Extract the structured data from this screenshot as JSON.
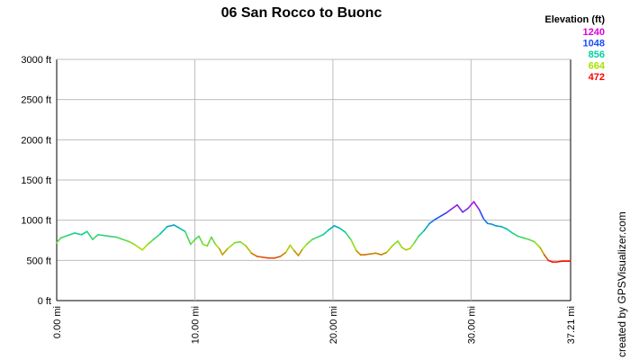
{
  "chart_data": {
    "type": "line",
    "title": "06 San Rocco to Buonc",
    "credit": "created by GPSVisualizer.com",
    "x_unit": "mi",
    "y_unit": "ft",
    "xlim": [
      0,
      37.21
    ],
    "ylim": [
      0,
      3000
    ],
    "x_ticks": [
      "0.00 mi",
      "10.00 mi",
      "20.00 mi",
      "30.00 mi",
      "37.21 mi"
    ],
    "y_ticks": [
      "0 ft",
      "500 ft",
      "1000 ft",
      "1500 ft",
      "2000 ft",
      "2500 ft",
      "3000 ft"
    ],
    "grid": true,
    "legend": {
      "title": "Elevation (ft)",
      "position": "top-right",
      "entries": [
        {
          "label": "1240",
          "color": "#dd00dd"
        },
        {
          "label": "1048",
          "color": "#1a4dff"
        },
        {
          "label": "856",
          "color": "#00d0a0"
        },
        {
          "label": "664",
          "color": "#a8e000"
        },
        {
          "label": "472",
          "color": "#ff0000"
        }
      ]
    },
    "series": [
      {
        "x": [
          0,
          0.3,
          0.8,
          1.3,
          1.8,
          2.2,
          2.6,
          3.0,
          3.4,
          3.8,
          4.3,
          4.8,
          5.3,
          5.7,
          6.2,
          6.6,
          7.0,
          7.5,
          8.0,
          8.5,
          8.9,
          9.3,
          9.7,
          10.0,
          10.3,
          10.6,
          10.9,
          11.2,
          11.5,
          11.8,
          12.0,
          12.4,
          12.9,
          13.3,
          13.7,
          14.1,
          14.5,
          14.9,
          15.3,
          15.8,
          16.2,
          16.6,
          16.9,
          17.2,
          17.5,
          17.8,
          18.1,
          18.5,
          18.9,
          19.3,
          19.7,
          20.1,
          20.5,
          20.9,
          21.3,
          21.7,
          22.0,
          22.3,
          22.7,
          23.1,
          23.5,
          23.9,
          24.3,
          24.7,
          25.0,
          25.3,
          25.6,
          25.9,
          26.2,
          26.6,
          27.0,
          27.4,
          27.8,
          28.2,
          28.6,
          29.0,
          29.4,
          29.8,
          30.2,
          30.6,
          30.9,
          31.2,
          31.5,
          31.8,
          32.2,
          32.6,
          33.0,
          33.4,
          33.8,
          34.2,
          34.6,
          35.0,
          35.3,
          35.6,
          35.9,
          36.2,
          36.6,
          37.21
        ],
        "y": [
          720,
          780,
          810,
          840,
          820,
          860,
          760,
          820,
          810,
          800,
          790,
          760,
          730,
          690,
          630,
          700,
          760,
          830,
          920,
          940,
          900,
          860,
          700,
          760,
          800,
          700,
          680,
          790,
          700,
          640,
          570,
          650,
          720,
          730,
          680,
          590,
          550,
          540,
          530,
          530,
          550,
          600,
          690,
          620,
          560,
          640,
          700,
          760,
          790,
          820,
          880,
          930,
          900,
          850,
          760,
          620,
          570,
          570,
          580,
          590,
          570,
          600,
          680,
          740,
          660,
          630,
          650,
          720,
          800,
          870,
          960,
          1010,
          1050,
          1090,
          1140,
          1190,
          1100,
          1150,
          1230,
          1130,
          1020,
          960,
          950,
          930,
          920,
          890,
          840,
          800,
          780,
          760,
          730,
          660,
          570,
          500,
          480,
          480,
          490,
          490
        ]
      }
    ]
  }
}
